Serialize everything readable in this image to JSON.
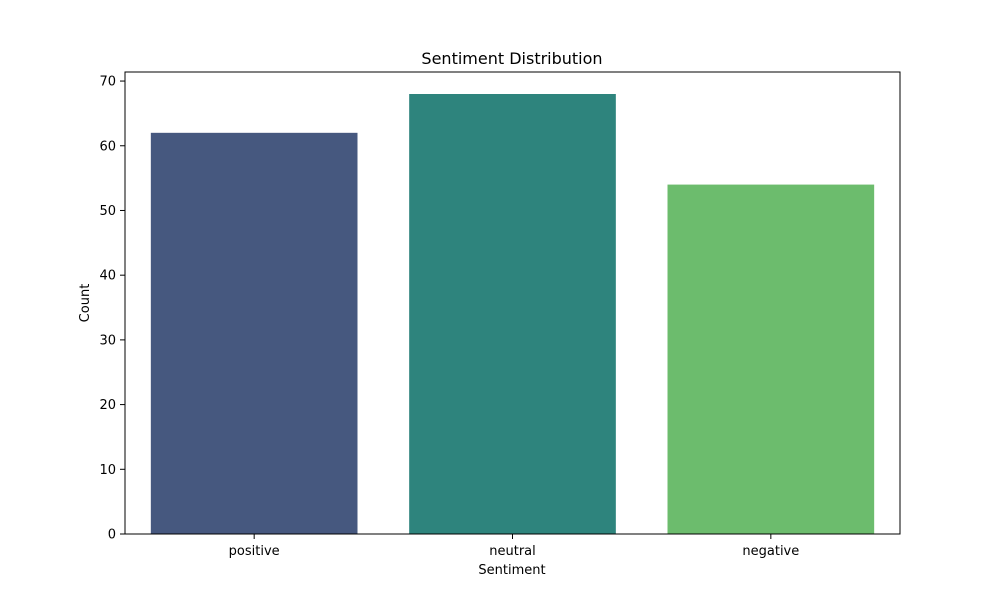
{
  "chart_data": {
    "type": "bar",
    "title": "Sentiment Distribution",
    "xlabel": "Sentiment",
    "ylabel": "Count",
    "categories": [
      "positive",
      "neutral",
      "negative"
    ],
    "values": [
      62,
      68,
      54
    ],
    "colors": [
      "#46587f",
      "#2e847d",
      "#6cbc6d"
    ],
    "ylim": [
      0,
      71.4
    ],
    "yticks": [
      0,
      10,
      20,
      30,
      40,
      50,
      60,
      70
    ],
    "grid": false,
    "legend": "none"
  }
}
